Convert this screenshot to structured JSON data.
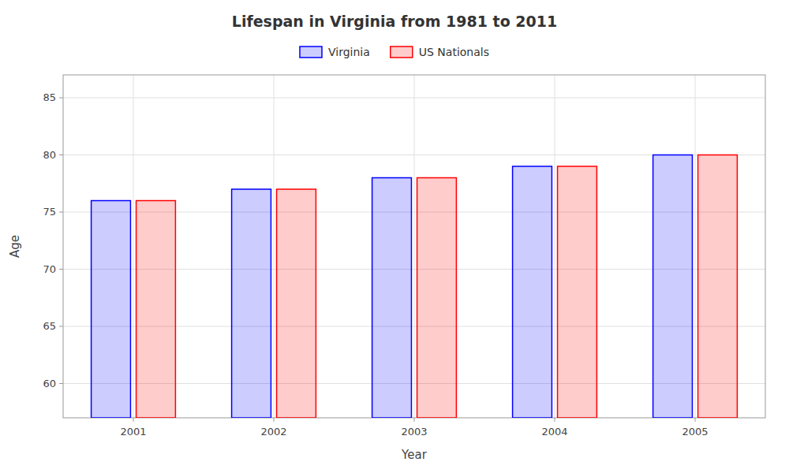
{
  "chart_data": {
    "type": "bar",
    "title": "Lifespan in Virginia from 1981 to 2011",
    "x_label": "Year",
    "y_label": "Age",
    "categories": [
      "2001",
      "2002",
      "2003",
      "2004",
      "2005"
    ],
    "series": [
      {
        "name": "Virginia",
        "color": "#0000ff",
        "values": [
          76,
          77,
          78,
          79,
          80
        ]
      },
      {
        "name": "US Nationals",
        "color": "#ff0000",
        "values": [
          76,
          77,
          78,
          79,
          80
        ]
      }
    ],
    "ylim": [
      57,
      87
    ],
    "yticks": [
      60,
      65,
      70,
      75,
      80,
      85
    ],
    "grid": true,
    "legend": "top"
  }
}
